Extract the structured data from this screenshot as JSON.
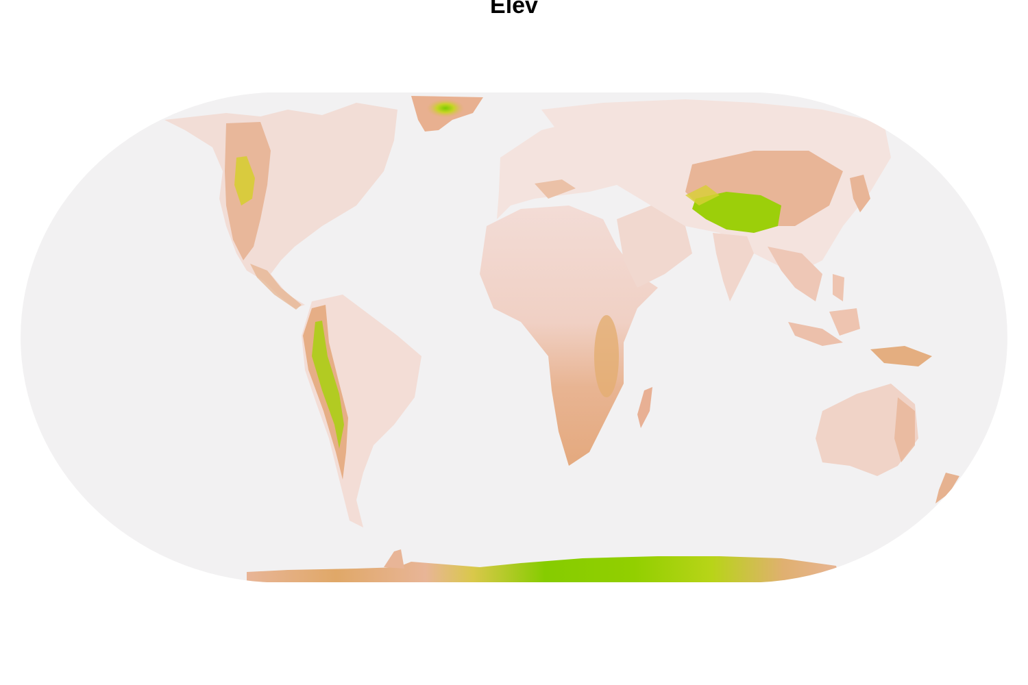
{
  "map": {
    "title": "Elev",
    "projection": "Eckert IV",
    "variable": "elevation",
    "colors": {
      "background": "#ffffff",
      "ocean": "#f2f1f2",
      "low": "#f5e6e4",
      "mid": "#e8b597",
      "mid_high": "#e0a868",
      "high": "#d4d23a",
      "highest": "#7ecb00"
    }
  }
}
